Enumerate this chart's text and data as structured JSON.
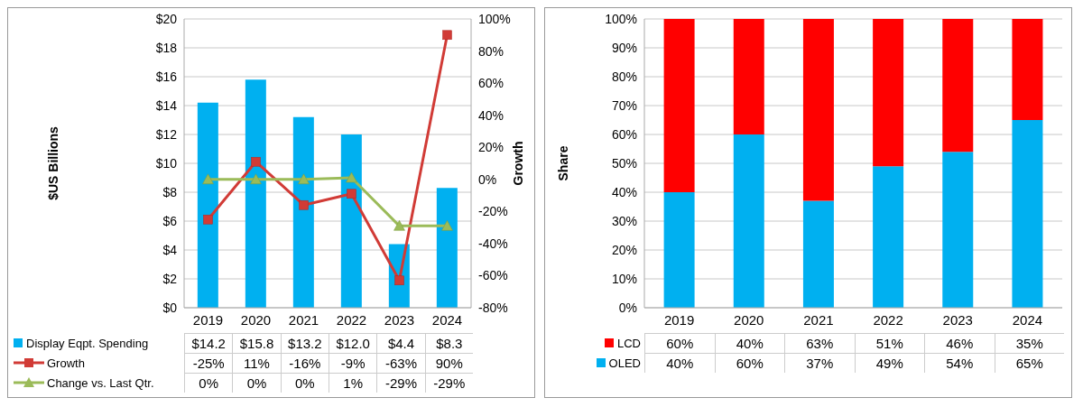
{
  "chart_data": [
    {
      "type": "bar",
      "categories": [
        "2019",
        "2020",
        "2021",
        "2022",
        "2023",
        "2024"
      ],
      "ylabel": "$US Billions",
      "y2label": "Growth",
      "ylim": [
        0,
        20
      ],
      "yticks": [
        {
          "value": 0,
          "label": "$0"
        },
        {
          "value": 2,
          "label": "$2"
        },
        {
          "value": 4,
          "label": "$4"
        },
        {
          "value": 6,
          "label": "$6"
        },
        {
          "value": 8,
          "label": "$8"
        },
        {
          "value": 10,
          "label": "$10"
        },
        {
          "value": 12,
          "label": "$12"
        },
        {
          "value": 14,
          "label": "$14"
        },
        {
          "value": 16,
          "label": "$16"
        },
        {
          "value": 18,
          "label": "$18"
        },
        {
          "value": 20,
          "label": "$20"
        }
      ],
      "y2lim": [
        -80,
        100
      ],
      "y2ticks": [
        {
          "value": -80,
          "label": "-80%"
        },
        {
          "value": -60,
          "label": "-60%"
        },
        {
          "value": -40,
          "label": "-40%"
        },
        {
          "value": -20,
          "label": "-20%"
        },
        {
          "value": 0,
          "label": "0%"
        },
        {
          "value": 20,
          "label": "20%"
        },
        {
          "value": 40,
          "label": "40%"
        },
        {
          "value": 60,
          "label": "60%"
        },
        {
          "value": 80,
          "label": "80%"
        },
        {
          "value": 100,
          "label": "100%"
        }
      ],
      "grid": "y",
      "legend": "bottom",
      "series": [
        {
          "name": "Display Eqpt. Spending",
          "color": "#00b0f0",
          "values": [
            14.2,
            15.8,
            13.2,
            12.0,
            4.4,
            8.3
          ],
          "value_labels": [
            "$14.2",
            "$15.8",
            "$13.2",
            "$12.0",
            "$4.4",
            "$8.3"
          ]
        },
        {
          "name": "Growth",
          "type": "line",
          "axis": "y2",
          "marker": "square",
          "color": "#d13b36",
          "values": [
            -25,
            11,
            -16,
            -9,
            -63,
            90
          ],
          "value_labels": [
            "-25%",
            "11%",
            "-16%",
            "-9%",
            "-63%",
            "90%"
          ]
        },
        {
          "name": "Change vs. Last Qtr.",
          "type": "line",
          "axis": "y2",
          "marker": "triangle",
          "color": "#9bbb59",
          "values": [
            0,
            0,
            0,
            1,
            -29,
            -29
          ],
          "value_labels": [
            "0%",
            "0%",
            "0%",
            "1%",
            "-29%",
            "-29%"
          ]
        }
      ]
    },
    {
      "type": "bar",
      "stacked": true,
      "categories": [
        "2019",
        "2020",
        "2021",
        "2022",
        "2023",
        "2024"
      ],
      "ylabel": "Share",
      "ylim": [
        0,
        100
      ],
      "yticks": [
        {
          "value": 0,
          "label": "0%"
        },
        {
          "value": 10,
          "label": "10%"
        },
        {
          "value": 20,
          "label": "20%"
        },
        {
          "value": 30,
          "label": "30%"
        },
        {
          "value": 40,
          "label": "40%"
        },
        {
          "value": 50,
          "label": "50%"
        },
        {
          "value": 60,
          "label": "60%"
        },
        {
          "value": 70,
          "label": "70%"
        },
        {
          "value": 80,
          "label": "80%"
        },
        {
          "value": 90,
          "label": "90%"
        },
        {
          "value": 100,
          "label": "100%"
        }
      ],
      "grid": "y",
      "legend": "bottom",
      "series": [
        {
          "name": "OLED",
          "color": "#00b0f0",
          "values": [
            40,
            60,
            37,
            49,
            54,
            65
          ],
          "value_labels": [
            "40%",
            "60%",
            "37%",
            "49%",
            "54%",
            "65%"
          ]
        },
        {
          "name": "LCD",
          "color": "#ff0000",
          "values": [
            60,
            40,
            63,
            51,
            46,
            35
          ],
          "value_labels": [
            "60%",
            "40%",
            "63%",
            "51%",
            "46%",
            "35%"
          ]
        }
      ]
    }
  ]
}
